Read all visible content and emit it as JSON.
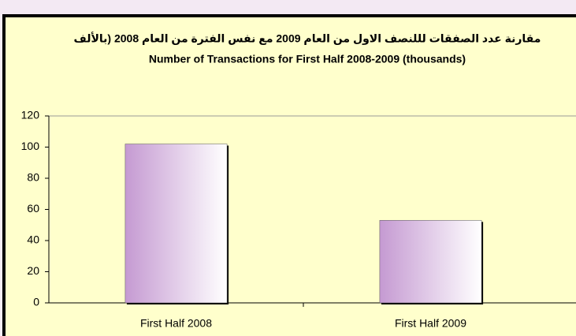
{
  "chart_data": {
    "type": "bar",
    "title": "مقارنة عدد الصفقات  لللنصف الاول من العام 2009 مع نفس الفترة من العام 2008 (بالألف",
    "subtitle": "Number of Transactions for First Half   2008-2009  (thousands)",
    "categories": [
      "First Half 2008",
      "First Half 2009"
    ],
    "values": [
      102,
      53
    ],
    "color": "#c59ad2",
    "ylim": [
      0,
      120
    ],
    "yticks": [
      0,
      20,
      40,
      60,
      80,
      100,
      120
    ],
    "grid": false
  }
}
